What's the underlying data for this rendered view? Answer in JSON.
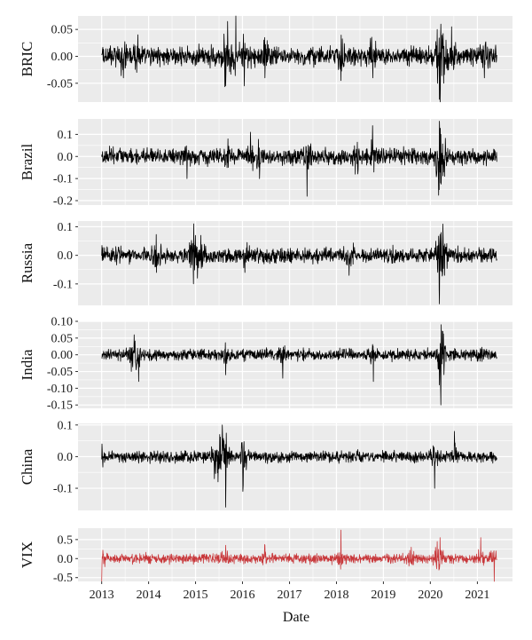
{
  "chart_data": {
    "type": "line",
    "xlabel": "Date",
    "x_ticks": [
      "2013",
      "2014",
      "2015",
      "2016",
      "2017",
      "2018",
      "2019",
      "2020",
      "2021"
    ],
    "x_range": [
      "2012-07-01",
      "2021-10-01"
    ],
    "panels": [
      {
        "name": "BRIC",
        "ylabel": "BRIC",
        "color": "#000000",
        "ylim": [
          -0.085,
          0.075
        ],
        "y_ticks": [
          -0.05,
          0.0,
          0.05
        ],
        "y_tick_labels": [
          "-0.05",
          "0.00",
          "0.05"
        ],
        "base_amplitude": 0.01,
        "events": [
          {
            "date": "2013-06-20",
            "value": -0.04
          },
          {
            "date": "2013-10-10",
            "value": 0.04
          },
          {
            "date": "2015-08-24",
            "value": -0.055
          },
          {
            "date": "2015-09-08",
            "value": 0.065
          },
          {
            "date": "2015-11-10",
            "value": 0.075
          },
          {
            "date": "2016-01-15",
            "value": -0.055
          },
          {
            "date": "2016-06-24",
            "value": -0.04
          },
          {
            "date": "2018-02-05",
            "value": -0.045
          },
          {
            "date": "2018-10-10",
            "value": -0.04
          },
          {
            "date": "2020-02-24",
            "value": 0.05
          },
          {
            "date": "2020-03-12",
            "value": -0.08
          },
          {
            "date": "2020-03-24",
            "value": 0.06
          },
          {
            "date": "2020-04-15",
            "value": -0.05
          },
          {
            "date": "2020-06-15",
            "value": 0.055
          },
          {
            "date": "2021-02-25",
            "value": -0.04
          }
        ]
      },
      {
        "name": "Brazil",
        "ylabel": "Brazil",
        "color": "#000000",
        "ylim": [
          -0.22,
          0.17
        ],
        "y_ticks": [
          -0.2,
          -0.1,
          0.0,
          0.1
        ],
        "y_tick_labels": [
          "-0.2",
          "-0.1",
          "0.0",
          "0.1"
        ],
        "base_amplitude": 0.02,
        "events": [
          {
            "date": "2014-10-27",
            "value": -0.1
          },
          {
            "date": "2015-09-10",
            "value": 0.08
          },
          {
            "date": "2016-03-04",
            "value": 0.11
          },
          {
            "date": "2016-05-12",
            "value": -0.1
          },
          {
            "date": "2017-05-18",
            "value": -0.18
          },
          {
            "date": "2018-05-28",
            "value": -0.08
          },
          {
            "date": "2018-10-08",
            "value": 0.14
          },
          {
            "date": "2020-03-09",
            "value": -0.15
          },
          {
            "date": "2020-03-12",
            "value": -0.2
          },
          {
            "date": "2020-03-13",
            "value": 0.16
          },
          {
            "date": "2020-03-24",
            "value": 0.1
          },
          {
            "date": "2020-04-20",
            "value": -0.09
          }
        ]
      },
      {
        "name": "Russia",
        "ylabel": "Russia",
        "color": "#000000",
        "ylim": [
          -0.175,
          0.12
        ],
        "y_ticks": [
          -0.1,
          0.0,
          0.1
        ],
        "y_tick_labels": [
          "-0.1",
          "0.0",
          "0.1"
        ],
        "base_amplitude": 0.015,
        "events": [
          {
            "date": "2014-03-03",
            "value": -0.06
          },
          {
            "date": "2014-12-16",
            "value": -0.1
          },
          {
            "date": "2014-12-17",
            "value": 0.11
          },
          {
            "date": "2015-01-15",
            "value": -0.08
          },
          {
            "date": "2015-02-10",
            "value": 0.07
          },
          {
            "date": "2016-01-20",
            "value": -0.06
          },
          {
            "date": "2018-04-09",
            "value": -0.07
          },
          {
            "date": "2020-03-09",
            "value": -0.12
          },
          {
            "date": "2020-03-12",
            "value": -0.17
          },
          {
            "date": "2020-03-25",
            "value": 0.08
          },
          {
            "date": "2020-04-20",
            "value": -0.07
          }
        ]
      },
      {
        "name": "India",
        "ylabel": "India",
        "color": "#000000",
        "ylim": [
          -0.16,
          0.1
        ],
        "y_ticks": [
          -0.15,
          -0.1,
          -0.05,
          0.0,
          0.05,
          0.1
        ],
        "y_tick_labels": [
          "-0.15",
          "-0.10",
          "-0.05",
          "0.00",
          "0.05",
          "0.10"
        ],
        "base_amplitude": 0.01,
        "events": [
          {
            "date": "2013-08-20",
            "value": -0.05
          },
          {
            "date": "2013-09-10",
            "value": 0.06
          },
          {
            "date": "2013-10-15",
            "value": -0.08
          },
          {
            "date": "2015-08-24",
            "value": -0.06
          },
          {
            "date": "2016-11-09",
            "value": -0.07
          },
          {
            "date": "2018-10-15",
            "value": -0.08
          },
          {
            "date": "2020-03-12",
            "value": -0.09
          },
          {
            "date": "2020-03-23",
            "value": -0.15
          },
          {
            "date": "2020-03-25",
            "value": 0.09
          },
          {
            "date": "2020-04-07",
            "value": 0.07
          }
        ]
      },
      {
        "name": "China",
        "ylabel": "China",
        "color": "#000000",
        "ylim": [
          -0.17,
          0.105
        ],
        "y_ticks": [
          -0.1,
          0.0,
          0.1
        ],
        "y_tick_labels": [
          "-0.1",
          "0.0",
          "0.1"
        ],
        "base_amplitude": 0.01,
        "events": [
          {
            "date": "2013-01-03",
            "value": 0.04
          },
          {
            "date": "2015-05-28",
            "value": -0.07
          },
          {
            "date": "2015-06-26",
            "value": -0.08
          },
          {
            "date": "2015-07-09",
            "value": 0.07
          },
          {
            "date": "2015-07-27",
            "value": 0.1
          },
          {
            "date": "2015-08-24",
            "value": -0.16
          },
          {
            "date": "2015-08-25",
            "value": -0.08
          },
          {
            "date": "2016-01-04",
            "value": -0.11
          },
          {
            "date": "2016-01-07",
            "value": -0.09
          },
          {
            "date": "2020-02-03",
            "value": -0.1
          },
          {
            "date": "2020-07-06",
            "value": 0.08
          }
        ]
      },
      {
        "name": "VIX",
        "ylabel": "VIX",
        "color": "#c8383b",
        "ylim": [
          -0.6,
          0.8
        ],
        "y_ticks": [
          -0.5,
          0.0,
          0.5
        ],
        "y_tick_labels": [
          "-0.5",
          "0.0",
          "0.5"
        ],
        "base_amplitude": 0.07,
        "events": [
          {
            "date": "2013-01-02",
            "value": -0.6
          },
          {
            "date": "2015-08-24",
            "value": 0.35
          },
          {
            "date": "2016-06-24",
            "value": 0.35
          },
          {
            "date": "2018-02-05",
            "value": 0.75
          },
          {
            "date": "2019-08-05",
            "value": 0.3
          },
          {
            "date": "2020-02-24",
            "value": 0.45
          },
          {
            "date": "2020-03-16",
            "value": 0.55
          },
          {
            "date": "2021-01-27",
            "value": 0.55
          },
          {
            "date": "2021-05-12",
            "value": -0.6
          }
        ]
      }
    ]
  }
}
